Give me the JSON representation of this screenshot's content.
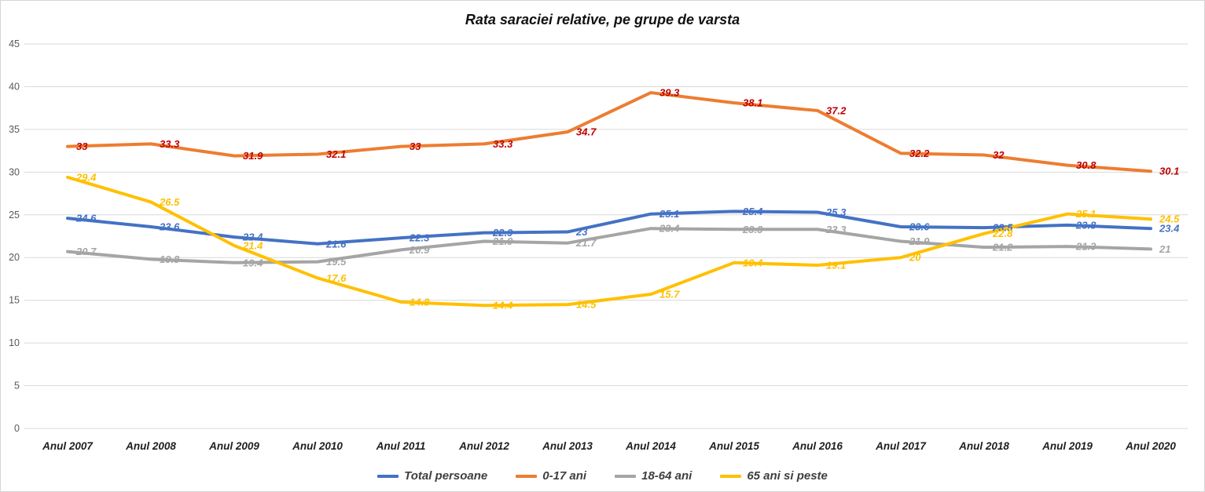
{
  "title": "Rata saraciei relative, pe grupe de varsta",
  "chart_data": {
    "type": "line",
    "title": "Rata saraciei relative, pe grupe de varsta",
    "categories": [
      "Anul 2007",
      "Anul 2008",
      "Anul 2009",
      "Anul 2010",
      "Anul 2011",
      "Anul 2012",
      "Anul 2013",
      "Anul 2014",
      "Anul 2015",
      "Anul 2016",
      "Anul 2017",
      "Anul 2018",
      "Anul 2019",
      "Anul 2020"
    ],
    "series": [
      {
        "name": "Total persoane",
        "color": "#4472C4",
        "label_color": "#4472C4",
        "values": [
          24.6,
          23.6,
          22.4,
          21.6,
          22.3,
          22.9,
          23,
          25.1,
          25.4,
          25.3,
          23.6,
          23.5,
          23.8,
          23.4
        ]
      },
      {
        "name": "0-17 ani",
        "color": "#ED7D31",
        "label_color": "#C00000",
        "values": [
          33,
          33.3,
          31.9,
          32.1,
          33,
          33.3,
          34.7,
          39.3,
          38.1,
          37.2,
          32.2,
          32,
          30.8,
          30.1
        ]
      },
      {
        "name": "18-64 ani",
        "color": "#A5A5A5",
        "label_color": "#A5A5A5",
        "values": [
          20.7,
          19.8,
          19.4,
          19.5,
          20.9,
          21.9,
          21.7,
          23.4,
          23.3,
          23.3,
          21.9,
          21.2,
          21.3,
          21
        ]
      },
      {
        "name": "65 ani si peste",
        "color": "#FFC000",
        "label_color": "#FFC000",
        "values": [
          29.4,
          26.5,
          21.4,
          17.6,
          14.8,
          14.4,
          14.5,
          15.7,
          19.4,
          19.1,
          20,
          22.8,
          25.1,
          24.5
        ]
      }
    ],
    "xlabel": "",
    "ylabel": "",
    "ylim": [
      0,
      45
    ],
    "yticks": [
      45,
      40,
      35,
      30,
      25,
      20,
      15,
      10,
      5,
      0
    ],
    "grid": true,
    "legend_position": "bottom",
    "gridline_color": "#D9D9D9",
    "ytick_color": "#595959",
    "xtick_color": "#1f1f1f"
  }
}
